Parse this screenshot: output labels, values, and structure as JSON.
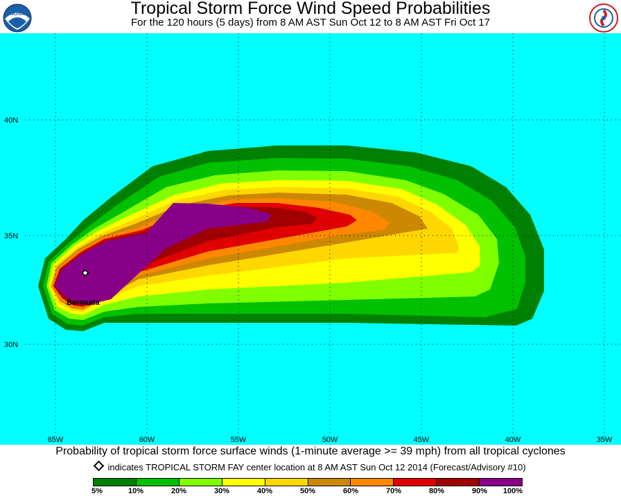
{
  "header": {
    "title": "Tropical Storm Force Wind Speed Probabilities",
    "subtitle": "For the 120 hours (5 days) from 8 AM AST Sun Oct 12 to 8 AM AST Fri Oct 17",
    "left_logo": "NOAA",
    "right_logo": "National Weather Service"
  },
  "map": {
    "background_color": "#00ffff",
    "lon_labels": [
      "65W",
      "60W",
      "55W",
      "50W",
      "45W",
      "40W",
      "35W"
    ],
    "lat_labels": [
      "40N",
      "35N",
      "30N"
    ],
    "place_label": "Bermuda",
    "storm_marker": "storm-center-diamond"
  },
  "footer": {
    "caption": "Probability of tropical storm force surface winds (1-minute average >= 39 mph) from all tropical cyclones",
    "note": "indicates TROPICAL STORM FAY center location at 8 AM AST Sun Oct 12 2014 (Forecast/Advisory #10)"
  },
  "legend": {
    "colors": [
      "#008000",
      "#00c000",
      "#80ff00",
      "#ffff00",
      "#ffd700",
      "#cc8800",
      "#ff8800",
      "#e00000",
      "#a00000",
      "#880088"
    ],
    "labels": [
      "5%",
      "10%",
      "20%",
      "30%",
      "40%",
      "50%",
      "60%",
      "70%",
      "80%",
      "90%",
      "100%"
    ]
  }
}
